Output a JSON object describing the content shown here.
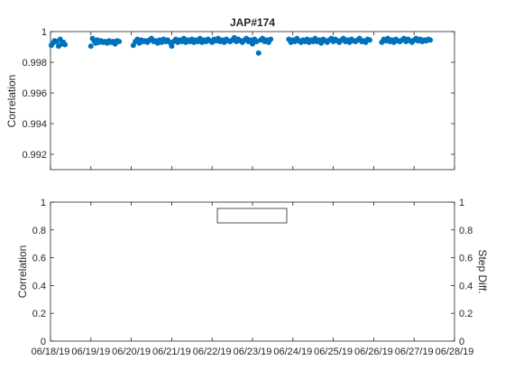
{
  "chart_data": [
    {
      "type": "scatter",
      "title": "JAP#174",
      "xlabel": "",
      "ylabel": "Correlation",
      "xlim": [
        "06/18/19",
        "06/28/19"
      ],
      "ylim": [
        0.991,
        1.0
      ],
      "yticks": [
        "0.992",
        "0.994",
        "0.996",
        "0.998",
        "1"
      ],
      "series_color": "#0072BD",
      "x_unit": "days",
      "x_origin": "06/18/19",
      "points": [
        [
          0.02,
          0.9991
        ],
        [
          0.06,
          0.99925
        ],
        [
          0.1,
          0.9994
        ],
        [
          0.15,
          0.99935
        ],
        [
          0.2,
          0.99905
        ],
        [
          0.24,
          0.9995
        ],
        [
          0.28,
          0.9992
        ],
        [
          0.32,
          0.9993
        ],
        [
          0.36,
          0.99915
        ],
        [
          1.0,
          0.99905
        ],
        [
          1.04,
          0.99955
        ],
        [
          1.08,
          0.9994
        ],
        [
          1.12,
          0.99925
        ],
        [
          1.16,
          0.99945
        ],
        [
          1.2,
          0.9993
        ],
        [
          1.25,
          0.9994
        ],
        [
          1.3,
          0.9993
        ],
        [
          1.35,
          0.99935
        ],
        [
          1.4,
          0.99925
        ],
        [
          1.45,
          0.9994
        ],
        [
          1.5,
          0.9993
        ],
        [
          1.55,
          0.99935
        ],
        [
          1.6,
          0.9992
        ],
        [
          1.65,
          0.9994
        ],
        [
          1.7,
          0.99935
        ],
        [
          2.05,
          0.9991
        ],
        [
          2.1,
          0.99935
        ],
        [
          2.15,
          0.9995
        ],
        [
          2.2,
          0.99925
        ],
        [
          2.25,
          0.99945
        ],
        [
          2.3,
          0.99935
        ],
        [
          2.35,
          0.9994
        ],
        [
          2.4,
          0.9993
        ],
        [
          2.45,
          0.99945
        ],
        [
          2.5,
          0.99955
        ],
        [
          2.55,
          0.99935
        ],
        [
          2.6,
          0.9994
        ],
        [
          2.65,
          0.99925
        ],
        [
          2.7,
          0.99945
        ],
        [
          2.75,
          0.9993
        ],
        [
          2.8,
          0.9995
        ],
        [
          2.85,
          0.99935
        ],
        [
          2.9,
          0.99945
        ],
        [
          2.95,
          0.9993
        ],
        [
          3.0,
          0.99905
        ],
        [
          3.05,
          0.99935
        ],
        [
          3.1,
          0.9995
        ],
        [
          3.15,
          0.9993
        ],
        [
          3.2,
          0.99945
        ],
        [
          3.25,
          0.99935
        ],
        [
          3.3,
          0.99955
        ],
        [
          3.35,
          0.9993
        ],
        [
          3.4,
          0.99945
        ],
        [
          3.45,
          0.99935
        ],
        [
          3.5,
          0.9995
        ],
        [
          3.55,
          0.9993
        ],
        [
          3.6,
          0.99945
        ],
        [
          3.65,
          0.99935
        ],
        [
          3.7,
          0.99955
        ],
        [
          3.75,
          0.9993
        ],
        [
          3.8,
          0.99945
        ],
        [
          3.85,
          0.99935
        ],
        [
          3.9,
          0.9995
        ],
        [
          3.95,
          0.9994
        ],
        [
          4.0,
          0.9993
        ],
        [
          4.05,
          0.9995
        ],
        [
          4.1,
          0.9994
        ],
        [
          4.15,
          0.99955
        ],
        [
          4.2,
          0.99935
        ],
        [
          4.25,
          0.99945
        ],
        [
          4.3,
          0.9993
        ],
        [
          4.35,
          0.9995
        ],
        [
          4.4,
          0.9994
        ],
        [
          4.45,
          0.99935
        ],
        [
          4.5,
          0.99945
        ],
        [
          4.55,
          0.9996
        ],
        [
          4.6,
          0.99935
        ],
        [
          4.65,
          0.9995
        ],
        [
          4.7,
          0.9994
        ],
        [
          4.75,
          0.9993
        ],
        [
          4.8,
          0.99945
        ],
        [
          4.85,
          0.99955
        ],
        [
          4.9,
          0.99935
        ],
        [
          4.95,
          0.99945
        ],
        [
          5.0,
          0.9992
        ],
        [
          5.05,
          0.9995
        ],
        [
          5.1,
          0.99935
        ],
        [
          5.15,
          0.9986
        ],
        [
          5.2,
          0.99945
        ],
        [
          5.25,
          0.99955
        ],
        [
          5.3,
          0.99935
        ],
        [
          5.35,
          0.99945
        ],
        [
          5.4,
          0.9993
        ],
        [
          5.45,
          0.9995
        ],
        [
          5.9,
          0.9995
        ],
        [
          5.95,
          0.9993
        ],
        [
          6.0,
          0.99945
        ],
        [
          6.05,
          0.99935
        ],
        [
          6.1,
          0.99955
        ],
        [
          6.15,
          0.9994
        ],
        [
          6.2,
          0.9993
        ],
        [
          6.25,
          0.99945
        ],
        [
          6.3,
          0.99935
        ],
        [
          6.35,
          0.9995
        ],
        [
          6.4,
          0.9993
        ],
        [
          6.45,
          0.99945
        ],
        [
          6.5,
          0.99935
        ],
        [
          6.55,
          0.99955
        ],
        [
          6.6,
          0.99935
        ],
        [
          6.65,
          0.99945
        ],
        [
          6.7,
          0.99925
        ],
        [
          6.75,
          0.9995
        ],
        [
          6.8,
          0.9994
        ],
        [
          6.85,
          0.9993
        ],
        [
          6.9,
          0.99945
        ],
        [
          6.95,
          0.99955
        ],
        [
          7.0,
          0.99935
        ],
        [
          7.05,
          0.9995
        ],
        [
          7.1,
          0.9994
        ],
        [
          7.15,
          0.9993
        ],
        [
          7.2,
          0.99945
        ],
        [
          7.25,
          0.99955
        ],
        [
          7.3,
          0.99935
        ],
        [
          7.35,
          0.99945
        ],
        [
          7.4,
          0.9993
        ],
        [
          7.45,
          0.9995
        ],
        [
          7.5,
          0.9994
        ],
        [
          7.55,
          0.99935
        ],
        [
          7.6,
          0.99945
        ],
        [
          7.65,
          0.99955
        ],
        [
          7.7,
          0.99935
        ],
        [
          7.75,
          0.9994
        ],
        [
          7.8,
          0.9993
        ],
        [
          7.85,
          0.9995
        ],
        [
          7.9,
          0.99945
        ],
        [
          8.2,
          0.9993
        ],
        [
          8.25,
          0.9995
        ],
        [
          8.3,
          0.9994
        ],
        [
          8.35,
          0.99955
        ],
        [
          8.4,
          0.99935
        ],
        [
          8.45,
          0.99945
        ],
        [
          8.5,
          0.9993
        ],
        [
          8.55,
          0.9995
        ],
        [
          8.6,
          0.9994
        ],
        [
          8.65,
          0.99935
        ],
        [
          8.7,
          0.99945
        ],
        [
          8.75,
          0.99955
        ],
        [
          8.8,
          0.99935
        ],
        [
          8.85,
          0.9995
        ],
        [
          8.9,
          0.9994
        ],
        [
          8.95,
          0.9993
        ],
        [
          9.0,
          0.99945
        ],
        [
          9.05,
          0.99955
        ],
        [
          9.1,
          0.9994
        ],
        [
          9.15,
          0.9995
        ],
        [
          9.2,
          0.99935
        ],
        [
          9.25,
          0.99945
        ],
        [
          9.3,
          0.9994
        ],
        [
          9.35,
          0.9995
        ],
        [
          9.4,
          0.99945
        ]
      ]
    },
    {
      "type": "scatter",
      "title": "",
      "xlabel": "",
      "ylabel": "Correlation",
      "y2label": "Step Diff.",
      "xlim": [
        "06/18/19",
        "06/28/19"
      ],
      "xticks": [
        "06/18/19",
        "06/19/19",
        "06/20/19",
        "06/21/19",
        "06/22/19",
        "06/23/19",
        "06/24/19",
        "06/25/19",
        "06/26/19",
        "06/27/19",
        "06/28/19"
      ],
      "ylim": [
        0,
        1
      ],
      "yticks": [
        "0",
        "0.2",
        "0.4",
        "0.6",
        "0.8",
        "1"
      ],
      "y2lim": [
        0,
        1
      ],
      "y2ticks": [
        "0",
        "0.2",
        "0.4",
        "0.6",
        "0.8",
        "1"
      ],
      "points": [],
      "legend": "top-center, empty"
    }
  ]
}
